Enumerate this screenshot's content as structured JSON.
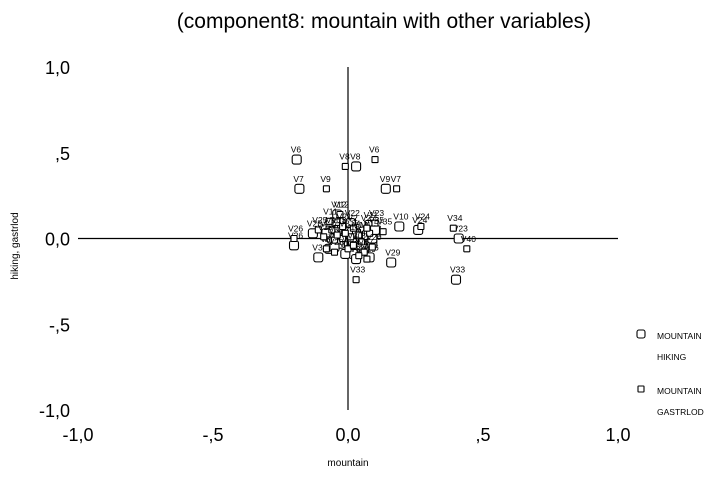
{
  "chart_data": {
    "type": "scatter",
    "title": "(component8: mountain with other variables)",
    "xlabel": "mountain",
    "ylabel": "hiking, gastrlod",
    "xlim": [
      -1.0,
      1.0
    ],
    "ylim": [
      -1.0,
      1.0
    ],
    "x_ticks": [
      {
        "v": -1.0,
        "label": "-1,0"
      },
      {
        "v": -0.5,
        "label": "-,5"
      },
      {
        "v": 0.0,
        "label": "0,0"
      },
      {
        "v": 0.5,
        "label": ",5"
      },
      {
        "v": 1.0,
        "label": "1,0"
      }
    ],
    "y_ticks": [
      {
        "v": 1.0,
        "label": "1,0"
      },
      {
        "v": 0.5,
        "label": ",5"
      },
      {
        "v": 0.0,
        "label": "0,0"
      },
      {
        "v": -0.5,
        "label": "-,5"
      },
      {
        "v": -1.0,
        "label": "-1,0"
      }
    ],
    "grid": false,
    "legend_position": "right",
    "series": [
      {
        "name": "MOUNTAIN HIKING",
        "legend_lines": [
          "MOUNTAIN",
          "HIKING"
        ],
        "marker": "large-square",
        "points": [
          {
            "label": "V6",
            "x": -0.19,
            "y": 0.46
          },
          {
            "label": "V8",
            "x": 0.03,
            "y": 0.42
          },
          {
            "label": "V7",
            "x": -0.18,
            "y": 0.29
          },
          {
            "label": "V9",
            "x": 0.14,
            "y": 0.29
          },
          {
            "label": "V10",
            "x": 0.19,
            "y": 0.07
          },
          {
            "label": "V24",
            "x": 0.26,
            "y": 0.05
          },
          {
            "label": "V23",
            "x": 0.41,
            "y": 0.0
          },
          {
            "label": "V33",
            "x": 0.4,
            "y": -0.24
          },
          {
            "label": "V29",
            "x": 0.16,
            "y": -0.14
          },
          {
            "label": "V11",
            "x": 0.08,
            "y": 0.08
          },
          {
            "label": "V12",
            "x": -0.04,
            "y": 0.14
          },
          {
            "label": "V25",
            "x": -0.13,
            "y": 0.03
          },
          {
            "label": "V26",
            "x": -0.2,
            "y": -0.04
          },
          {
            "label": "V3",
            "x": -0.11,
            "y": -0.11
          },
          {
            "label": "V1",
            "x": -0.07,
            "y": -0.06
          },
          {
            "label": "V2",
            "x": -0.02,
            "y": -0.02
          },
          {
            "label": "V4",
            "x": 0.03,
            "y": 0.03
          },
          {
            "label": "V5",
            "x": 0.06,
            "y": -0.06
          },
          {
            "label": "V13",
            "x": -0.04,
            "y": 0.05
          },
          {
            "label": "V14",
            "x": 0.0,
            "y": 0.04
          },
          {
            "label": "V15",
            "x": 0.05,
            "y": 0.0
          },
          {
            "label": "V16",
            "x": 0.08,
            "y": -0.11
          },
          {
            "label": "V17",
            "x": -0.03,
            "y": -0.03
          },
          {
            "label": "V18",
            "x": 0.02,
            "y": -0.09
          },
          {
            "label": "V19",
            "x": 0.07,
            "y": 0.02
          },
          {
            "label": "V20",
            "x": -0.06,
            "y": 0.0
          },
          {
            "label": "V21",
            "x": 0.09,
            "y": -0.03
          },
          {
            "label": "V22",
            "x": 0.01,
            "y": 0.09
          },
          {
            "label": "V27",
            "x": -0.08,
            "y": 0.03
          },
          {
            "label": "V28",
            "x": 0.09,
            "y": 0.0
          },
          {
            "label": "V30",
            "x": -0.01,
            "y": -0.09
          },
          {
            "label": "V31",
            "x": 0.05,
            "y": -0.04
          },
          {
            "label": "V32",
            "x": -0.05,
            "y": -0.05
          },
          {
            "label": "V34",
            "x": 0.03,
            "y": -0.12
          },
          {
            "label": "V35",
            "x": 0.1,
            "y": 0.05
          }
        ]
      },
      {
        "name": "MOUNTAIN GASTRLOD",
        "legend_lines": [
          "MOUNTAIN",
          "GASTRLOD"
        ],
        "marker": "small-square",
        "points": [
          {
            "label": "V6",
            "x": 0.1,
            "y": 0.46
          },
          {
            "label": "V8",
            "x": -0.01,
            "y": 0.42
          },
          {
            "label": "V9",
            "x": -0.08,
            "y": 0.29
          },
          {
            "label": "V7",
            "x": 0.18,
            "y": 0.29
          },
          {
            "label": "V12",
            "x": -0.03,
            "y": 0.14
          },
          {
            "label": "V11",
            "x": -0.07,
            "y": 0.1
          },
          {
            "label": "V23",
            "x": 0.1,
            "y": 0.09
          },
          {
            "label": "V34",
            "x": 0.39,
            "y": 0.06
          },
          {
            "label": "V24",
            "x": 0.27,
            "y": 0.07
          },
          {
            "label": "V35",
            "x": 0.13,
            "y": 0.04
          },
          {
            "label": "V40",
            "x": 0.44,
            "y": -0.06
          },
          {
            "label": "V33",
            "x": 0.03,
            "y": -0.24
          },
          {
            "label": "V10",
            "x": -0.06,
            "y": 0.05
          },
          {
            "label": "V26",
            "x": -0.2,
            "y": 0.0
          },
          {
            "label": "V25",
            "x": -0.11,
            "y": 0.05
          },
          {
            "label": "V29",
            "x": 0.07,
            "y": -0.12
          },
          {
            "label": "V3",
            "x": -0.08,
            "y": -0.06
          },
          {
            "label": "V1",
            "x": -0.02,
            "y": 0.0
          },
          {
            "label": "V2",
            "x": 0.02,
            "y": 0.06
          },
          {
            "label": "V4",
            "x": 0.05,
            "y": -0.02
          },
          {
            "label": "V5",
            "x": -0.05,
            "y": -0.01
          },
          {
            "label": "V13",
            "x": 0.0,
            "y": -0.06
          },
          {
            "label": "V14",
            "x": 0.04,
            "y": 0.02
          },
          {
            "label": "V15",
            "x": 0.08,
            "y": 0.03
          },
          {
            "label": "V16",
            "x": -0.04,
            "y": 0.02
          },
          {
            "label": "V17",
            "x": 0.06,
            "y": -0.08
          },
          {
            "label": "V18",
            "x": 0.01,
            "y": 0.01
          },
          {
            "label": "V19",
            "x": -0.09,
            "y": 0.01
          },
          {
            "label": "V20",
            "x": 0.09,
            "y": -0.05
          },
          {
            "label": "V21",
            "x": -0.02,
            "y": 0.07
          },
          {
            "label": "V22",
            "x": 0.04,
            "y": -0.1
          },
          {
            "label": "V27",
            "x": 0.07,
            "y": 0.06
          },
          {
            "label": "V28",
            "x": -0.05,
            "y": -0.08
          },
          {
            "label": "V30",
            "x": 0.02,
            "y": -0.04
          },
          {
            "label": "V31",
            "x": -0.01,
            "y": 0.03
          }
        ]
      }
    ]
  }
}
